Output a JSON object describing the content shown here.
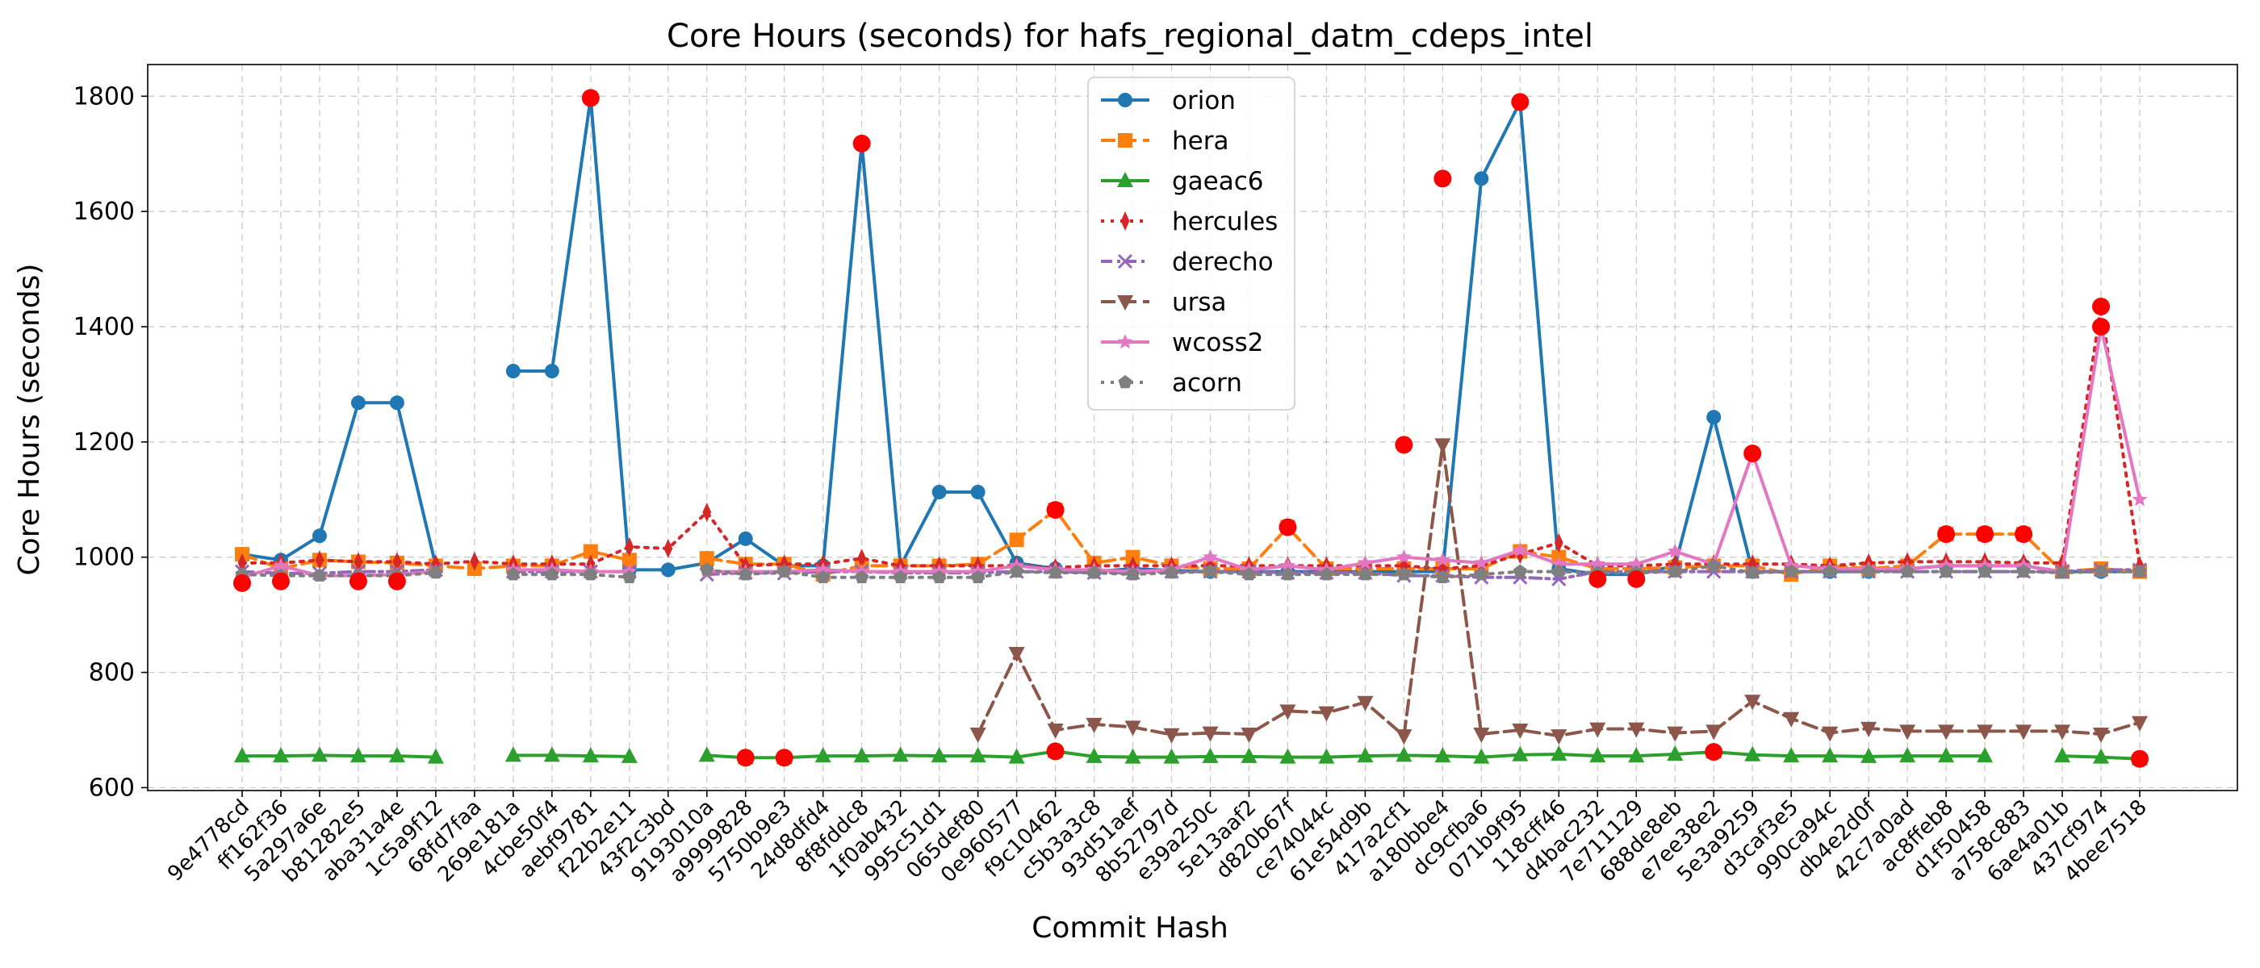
{
  "chart_data": {
    "type": "line",
    "title": "Core Hours (seconds) for hafs_regional_datm_cdeps_intel",
    "xlabel": "Commit Hash",
    "ylabel": "Core Hours (seconds)",
    "ylim": [
      595,
      1855
    ],
    "yticks": [
      600,
      800,
      1000,
      1200,
      1400,
      1600,
      1800
    ],
    "grid": true,
    "legend_position": "top-center",
    "categories": [
      "9e4778cd",
      "ff162f36",
      "5a297a6e",
      "b81282e5",
      "aba31a4e",
      "1c5a9f12",
      "68fd7faa",
      "269e181a",
      "4cbe50f4",
      "aebf9781",
      "f22b2e11",
      "43f2c3bd",
      "9193010a",
      "a9999828",
      "5750b9e3",
      "24d8dfd4",
      "8f8fddc8",
      "1f0ab432",
      "995c51d1",
      "065def80",
      "0e960577",
      "f9c10462",
      "c5b3a3c8",
      "93d51aef",
      "8b52797d",
      "e39a250c",
      "5e13aaf2",
      "d820b67f",
      "ce74044c",
      "61e54d9b",
      "417a2cf1",
      "a180bbe4",
      "dc9cfba6",
      "071b9f95",
      "118cff46",
      "d4bac232",
      "7e711129",
      "688de8eb",
      "e7ee38e2",
      "5e3a9259",
      "d3caf3e5",
      "990ca94c",
      "db4e2d0f",
      "42c7a0ad",
      "ac8ffeb8",
      "d1f50458",
      "a758c883",
      "6ae4a01b",
      "437cf974",
      "4bee7518"
    ],
    "series": [
      {
        "name": "orion",
        "color": "#1f77b4",
        "dash": "solid",
        "marker": "circle",
        "values": [
          1005,
          995,
          1037,
          1268,
          1268,
          985,
          null,
          1323,
          1323,
          1797,
          978,
          978,
          990,
          1032,
          985,
          985,
          1718,
          985,
          1113,
          1113,
          990,
          980,
          975,
          980,
          977,
          975,
          975,
          975,
          975,
          975,
          975,
          975,
          1657,
          1790,
          980,
          970,
          970,
          985,
          1243,
          975,
          975,
          975,
          975,
          980,
          985,
          985,
          985,
          975,
          975,
          975
        ]
      },
      {
        "name": "hera",
        "color": "#ff7f0e",
        "dash": "dashed",
        "marker": "square",
        "values": [
          1005,
          980,
          995,
          992,
          990,
          985,
          980,
          985,
          985,
          1010,
          995,
          null,
          998,
          988,
          988,
          970,
          985,
          985,
          985,
          988,
          1030,
          1082,
          990,
          1000,
          985,
          980,
          980,
          1052,
          980,
          980,
          980,
          980,
          980,
          1010,
          1000,
          980,
          980,
          982,
          985,
          985,
          970,
          985,
          980,
          985,
          1040,
          1040,
          1040,
          975,
          980,
          975
        ]
      },
      {
        "name": "gaeac6",
        "color": "#2ca02c",
        "dash": "solid",
        "marker": "triangle-up",
        "values": [
          655,
          655,
          656,
          655,
          655,
          653,
          null,
          656,
          656,
          655,
          654,
          null,
          656,
          652,
          652,
          655,
          655,
          656,
          655,
          655,
          653,
          663,
          654,
          653,
          653,
          654,
          654,
          653,
          653,
          655,
          656,
          655,
          653,
          657,
          658,
          655,
          655,
          658,
          662,
          657,
          655,
          655,
          654,
          655,
          655,
          655,
          null,
          655,
          653,
          650
        ]
      },
      {
        "name": "hercules",
        "color": "#d62728",
        "dash": "dotted",
        "marker": "thin-diamond",
        "values": [
          990,
          990,
          995,
          992,
          992,
          988,
          993,
          988,
          988,
          988,
          1018,
          1015,
          1078,
          985,
          988,
          988,
          998,
          985,
          985,
          985,
          985,
          982,
          985,
          985,
          985,
          985,
          985,
          985,
          985,
          985,
          985,
          980,
          985,
          1005,
          1025,
          985,
          985,
          988,
          988,
          988,
          988,
          985,
          990,
          992,
          992,
          992,
          990,
          990,
          1435,
          985
        ]
      },
      {
        "name": "derecho",
        "color": "#9467bd",
        "dash": "dashdot",
        "marker": "x",
        "values": [
          975,
          972,
          972,
          975,
          975,
          978,
          null,
          975,
          975,
          975,
          975,
          null,
          970,
          973,
          972,
          975,
          975,
          973,
          973,
          973,
          975,
          975,
          973,
          973,
          975,
          975,
          975,
          973,
          973,
          973,
          968,
          968,
          965,
          965,
          962,
          975,
          975,
          975,
          975,
          975,
          975,
          975,
          975,
          975,
          975,
          975,
          975,
          975,
          978,
          978
        ]
      },
      {
        "name": "ursa",
        "color": "#8c564b",
        "dash": "dashed",
        "marker": "triangle-down",
        "values": [
          null,
          null,
          null,
          null,
          null,
          null,
          null,
          null,
          null,
          null,
          null,
          null,
          null,
          null,
          null,
          null,
          null,
          null,
          null,
          693,
          833,
          700,
          710,
          705,
          692,
          695,
          693,
          733,
          730,
          748,
          690,
          1195,
          693,
          700,
          690,
          702,
          702,
          695,
          698,
          750,
          720,
          695,
          703,
          698,
          698,
          698,
          698,
          698,
          693,
          713
        ]
      },
      {
        "name": "wcoss2",
        "color": "#e377c2",
        "dash": "solid",
        "marker": "star",
        "values": [
          965,
          985,
          968,
          968,
          970,
          975,
          null,
          978,
          978,
          975,
          975,
          null,
          975,
          975,
          975,
          978,
          975,
          975,
          975,
          975,
          985,
          978,
          978,
          975,
          978,
          1000,
          978,
          985,
          978,
          990,
          1000,
          995,
          990,
          1012,
          988,
          988,
          988,
          1010,
          988,
          1180,
          985,
          980,
          980,
          980,
          985,
          985,
          985,
          975,
          1400,
          1100
        ]
      },
      {
        "name": "acorn",
        "color": "#7f7f7f",
        "dash": "dotted",
        "marker": "pentagon",
        "values": [
          970,
          968,
          968,
          968,
          968,
          973,
          null,
          970,
          970,
          970,
          965,
          null,
          978,
          970,
          975,
          965,
          965,
          965,
          965,
          965,
          975,
          973,
          973,
          970,
          973,
          975,
          970,
          970,
          970,
          970,
          970,
          965,
          970,
          975,
          975,
          973,
          973,
          975,
          985,
          973,
          975,
          975,
          975,
          975,
          975,
          975,
          975,
          973,
          975,
          975
        ]
      }
    ],
    "highlighted_points": [
      [
        0,
        955
      ],
      [
        1,
        958
      ],
      [
        3,
        958
      ],
      [
        4,
        958
      ],
      [
        9,
        1797
      ],
      [
        13,
        652
      ],
      [
        14,
        652
      ],
      [
        16,
        1718
      ],
      [
        21,
        1082
      ],
      [
        21,
        663
      ],
      [
        27,
        1052
      ],
      [
        30,
        1195
      ],
      [
        31,
        1657
      ],
      [
        33,
        1790
      ],
      [
        35,
        962
      ],
      [
        36,
        962
      ],
      [
        38,
        662
      ],
      [
        39,
        1180
      ],
      [
        44,
        1040
      ],
      [
        45,
        1040
      ],
      [
        46,
        1040
      ],
      [
        48,
        1435
      ],
      [
        48,
        1400
      ],
      [
        49,
        650
      ]
    ],
    "highlight_color": "#ff0000"
  }
}
